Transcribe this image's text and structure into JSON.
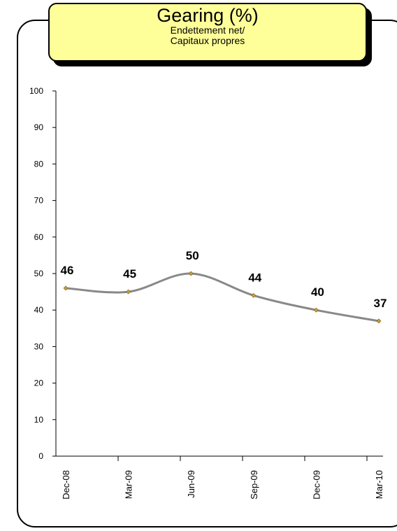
{
  "chart_data": {
    "type": "line",
    "title": "Gearing (%)",
    "subtitle_lines": [
      "Endettement net/",
      "Capitaux propres"
    ],
    "categories": [
      "Dec-08",
      "Mar-09",
      "Jun-09",
      "Sep-09",
      "Dec-09",
      "Mar-10"
    ],
    "values": [
      46,
      45,
      50,
      44,
      40,
      37
    ],
    "data_labels": [
      "46",
      "45",
      "50",
      "44",
      "40",
      "37"
    ],
    "y_ticks": [
      "0",
      "10",
      "20",
      "30",
      "40",
      "50",
      "60",
      "70",
      "80",
      "90",
      "100"
    ],
    "ylim": [
      0,
      100
    ],
    "xlabel": "",
    "ylabel": "",
    "grid": false,
    "legend": "none",
    "line_color": "#888888",
    "marker_color": "#c8a040",
    "smooth": true
  }
}
